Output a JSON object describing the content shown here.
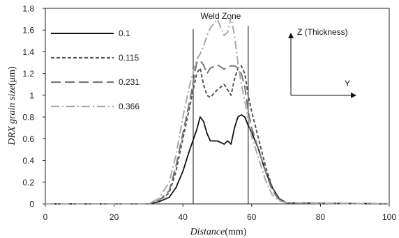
{
  "chart_data": {
    "type": "line",
    "xlabel": {
      "italic": "Distance",
      "unit": "(mm)"
    },
    "ylabel": {
      "italic": "DRX grain size",
      "unit": "(μm)"
    },
    "xlim": [
      0,
      100
    ],
    "ylim": [
      0,
      1.8
    ],
    "x_ticks": [
      0,
      20,
      40,
      60,
      80,
      100
    ],
    "y_ticks": [
      0,
      0.2,
      0.4,
      0.6,
      0.8,
      1,
      1.2,
      1.4,
      1.6,
      1.8
    ],
    "grid": false,
    "legend_position": "top-left",
    "annotations": {
      "weld_zone": {
        "text": "Weld Zone",
        "x_start": 43,
        "x_end": 59
      },
      "axes_indicator": {
        "z_label": "Z (Thickness)",
        "y_label": "Y"
      }
    },
    "series": [
      {
        "name": "0.1",
        "color": "#111111",
        "dash": "solid",
        "x": [
          0,
          30,
          33,
          36,
          38,
          40,
          42,
          44,
          45,
          46,
          47,
          48,
          50,
          52,
          53,
          54,
          55,
          56,
          57,
          58,
          59,
          60,
          62,
          64,
          66,
          68,
          70,
          100
        ],
        "y": [
          0,
          0,
          0.02,
          0.06,
          0.15,
          0.3,
          0.5,
          0.68,
          0.8,
          0.76,
          0.65,
          0.58,
          0.58,
          0.55,
          0.58,
          0.55,
          0.7,
          0.8,
          0.82,
          0.8,
          0.72,
          0.66,
          0.5,
          0.3,
          0.15,
          0.05,
          0.01,
          0
        ]
      },
      {
        "name": "0.115",
        "color": "#555555",
        "dash": "short-dash",
        "x": [
          0,
          30,
          33,
          36,
          38,
          40,
          42,
          44,
          45,
          46,
          47,
          48,
          50,
          52,
          53,
          54,
          55,
          56,
          57,
          58,
          59,
          60,
          62,
          64,
          66,
          68,
          70,
          100
        ],
        "y": [
          0,
          0,
          0.03,
          0.1,
          0.3,
          0.6,
          0.9,
          1.2,
          1.25,
          1.1,
          1.0,
          0.98,
          1.05,
          1.1,
          1.05,
          1.0,
          1.15,
          1.25,
          1.27,
          1.2,
          1.0,
          0.85,
          0.6,
          0.35,
          0.15,
          0.05,
          0.01,
          0
        ]
      },
      {
        "name": "0.231",
        "color": "#777777",
        "dash": "long-dash",
        "x": [
          0,
          30,
          33,
          36,
          38,
          40,
          42,
          44,
          45,
          46,
          47,
          48,
          50,
          52,
          53,
          54,
          55,
          56,
          57,
          58,
          59,
          60,
          62,
          64,
          66,
          68,
          70,
          100
        ],
        "y": [
          0,
          0,
          0.03,
          0.12,
          0.35,
          0.65,
          0.95,
          1.3,
          1.32,
          1.28,
          1.2,
          1.25,
          1.28,
          1.24,
          1.26,
          1.27,
          1.27,
          1.25,
          1.2,
          1.08,
          0.85,
          0.7,
          0.5,
          0.3,
          0.12,
          0.04,
          0.01,
          0
        ]
      },
      {
        "name": "0.366",
        "color": "#a8a8a8",
        "dash": "dash-dot",
        "x": [
          0,
          30,
          33,
          36,
          38,
          40,
          42,
          44,
          45,
          46,
          47,
          48,
          50,
          52,
          53,
          54,
          55,
          56,
          57,
          58,
          59,
          60,
          62,
          64,
          66,
          68,
          70,
          100
        ],
        "y": [
          0,
          0,
          0.05,
          0.2,
          0.45,
          0.8,
          1.1,
          1.33,
          1.38,
          1.45,
          1.55,
          1.62,
          1.7,
          1.55,
          1.58,
          1.72,
          1.55,
          1.3,
          1.1,
          0.95,
          0.78,
          0.62,
          0.42,
          0.22,
          0.08,
          0.03,
          0.01,
          0
        ]
      }
    ]
  }
}
